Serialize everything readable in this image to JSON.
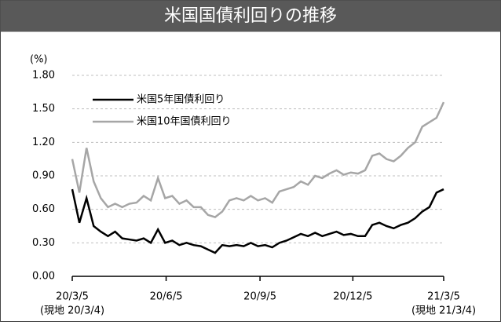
{
  "chart_data": {
    "type": "line",
    "title": "米国国債利回りの推移",
    "y_label": "(%)",
    "x": [
      0,
      7,
      14,
      21,
      28,
      35,
      42,
      49,
      56,
      63,
      70,
      77,
      84,
      91,
      98,
      105,
      112,
      119,
      126,
      133,
      140,
      147,
      154,
      161,
      168,
      175,
      182,
      189,
      196,
      203,
      210,
      217,
      224,
      231,
      238,
      245,
      252,
      259,
      266,
      273,
      280,
      287,
      294,
      301,
      308,
      315,
      322,
      329,
      336,
      343,
      350,
      357,
      364
    ],
    "series": [
      {
        "name": "米国5年国債利回り",
        "color": "#000000",
        "values": [
          0.78,
          0.48,
          0.7,
          0.45,
          0.4,
          0.36,
          0.4,
          0.34,
          0.33,
          0.32,
          0.34,
          0.3,
          0.42,
          0.3,
          0.32,
          0.28,
          0.3,
          0.28,
          0.27,
          0.24,
          0.21,
          0.28,
          0.27,
          0.28,
          0.27,
          0.3,
          0.27,
          0.28,
          0.26,
          0.3,
          0.32,
          0.35,
          0.38,
          0.36,
          0.39,
          0.36,
          0.38,
          0.4,
          0.37,
          0.38,
          0.36,
          0.36,
          0.46,
          0.48,
          0.45,
          0.43,
          0.46,
          0.48,
          0.52,
          0.58,
          0.62,
          0.75,
          0.78
        ]
      },
      {
        "name": "米国10年国債利回り",
        "color": "#a6a6a6",
        "values": [
          1.05,
          0.75,
          1.15,
          0.85,
          0.7,
          0.62,
          0.65,
          0.62,
          0.65,
          0.66,
          0.72,
          0.68,
          0.88,
          0.7,
          0.72,
          0.65,
          0.68,
          0.62,
          0.62,
          0.55,
          0.53,
          0.58,
          0.68,
          0.7,
          0.68,
          0.72,
          0.68,
          0.7,
          0.66,
          0.76,
          0.78,
          0.8,
          0.85,
          0.82,
          0.9,
          0.88,
          0.92,
          0.95,
          0.91,
          0.93,
          0.92,
          0.95,
          1.08,
          1.1,
          1.05,
          1.03,
          1.08,
          1.15,
          1.2,
          1.34,
          1.38,
          1.42,
          1.56
        ]
      }
    ],
    "xlim": [
      0,
      364
    ],
    "xticks": [
      {
        "value": 0,
        "label": "20/3/5"
      },
      {
        "value": 92,
        "label": "20/6/5"
      },
      {
        "value": 184,
        "label": "20/9/5"
      },
      {
        "value": 275,
        "label": "20/12/5"
      },
      {
        "value": 364,
        "label": "21/3/5"
      }
    ],
    "x_sublabels": [
      "(現地 20/3/4)",
      "(現地 21/3/4)"
    ],
    "ylim": [
      0,
      1.8
    ],
    "yticks": [
      {
        "value": 0,
        "label": "0.00"
      },
      {
        "value": 0.3,
        "label": "0.30"
      },
      {
        "value": 0.6,
        "label": "0.60"
      },
      {
        "value": 0.9,
        "label": "0.90"
      },
      {
        "value": 1.2,
        "label": "1.20"
      },
      {
        "value": 1.5,
        "label": "1.50"
      },
      {
        "value": 1.8,
        "label": "1.80"
      }
    ],
    "grid": true
  }
}
